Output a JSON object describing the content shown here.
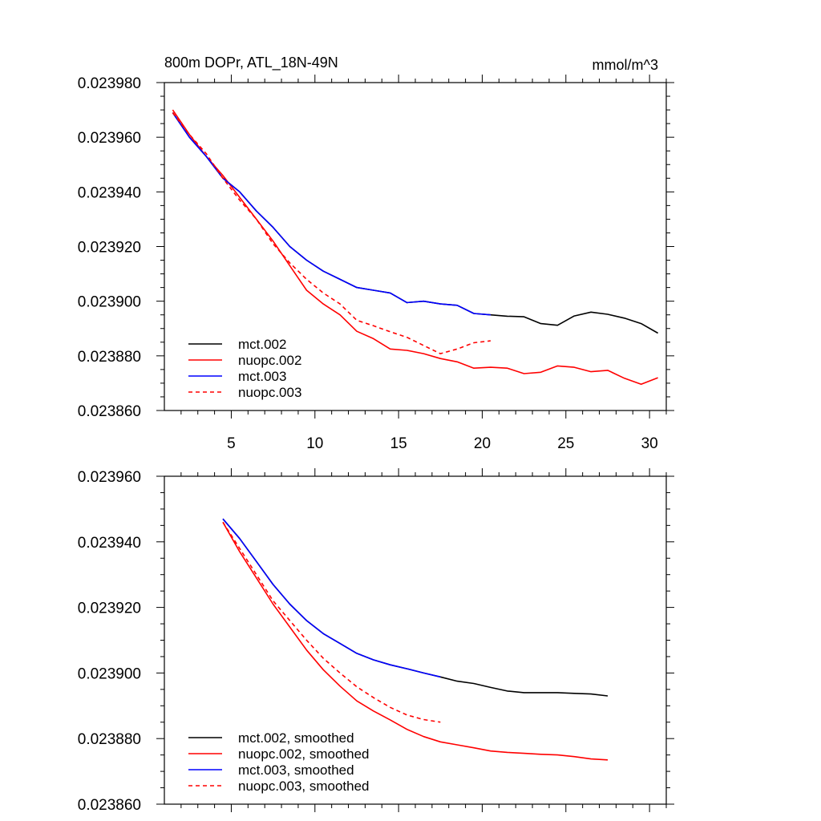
{
  "chart_data": [
    {
      "type": "line",
      "title": "800m DOPr, ATL_18N-49N",
      "units": "mmol/m^3",
      "xlim": [
        1,
        31
      ],
      "ylim": [
        0.02386,
        0.02398
      ],
      "xticks": [
        5,
        10,
        15,
        20,
        25,
        30
      ],
      "yticks": [
        "0.023980",
        "0.023960",
        "0.023940",
        "0.023920",
        "0.023900",
        "0.023880",
        "0.023860"
      ],
      "ytick_values": [
        0.02398,
        0.02396,
        0.02394,
        0.02392,
        0.0239,
        0.02388,
        0.02386
      ],
      "legend_position": "bottom-left",
      "series": [
        {
          "name": "mct.002",
          "color": "#000000",
          "dash": "solid",
          "x": [
            1.5,
            2.5,
            3.5,
            4.5,
            5.5,
            6.5,
            7.5,
            8.5,
            9.5,
            10.5,
            11.5,
            12.5,
            13.5,
            14.5,
            15.5,
            16.5,
            17.5,
            18.5,
            19.5,
            20.5,
            21.5,
            22.5,
            23.5,
            24.5,
            25.5,
            26.5,
            27.5,
            28.5,
            29.5,
            30.5
          ],
          "y": [
            0.023969,
            0.02396,
            0.023953,
            0.023945,
            0.02394,
            0.023933,
            0.023927,
            0.02392,
            0.023915,
            0.023911,
            0.023908,
            0.023905,
            0.023904,
            0.023903,
            0.0238995,
            0.0239,
            0.023899,
            0.0238985,
            0.0238955,
            0.023895,
            0.0238945,
            0.0238943,
            0.0238918,
            0.0238912,
            0.0238946,
            0.023896,
            0.0238952,
            0.0238938,
            0.0238918,
            0.0238883
          ]
        },
        {
          "name": "nuopc.002",
          "color": "#ff0000",
          "dash": "solid",
          "x": [
            1.5,
            2.5,
            3.5,
            4.5,
            5.5,
            6.5,
            7.5,
            8.5,
            9.5,
            10.5,
            11.5,
            12.5,
            13.5,
            14.5,
            15.5,
            16.5,
            17.5,
            18.5,
            19.5,
            20.5,
            21.5,
            22.5,
            23.5,
            24.5,
            25.5,
            26.5,
            27.5,
            28.5,
            29.5,
            30.5
          ],
          "y": [
            0.02397,
            0.023961,
            0.023953,
            0.023946,
            0.023938,
            0.02393,
            0.023922,
            0.023913,
            0.023904,
            0.023899,
            0.023895,
            0.023889,
            0.0238863,
            0.0238825,
            0.023882,
            0.0238808,
            0.023879,
            0.0238778,
            0.0238755,
            0.0238758,
            0.0238755,
            0.0238735,
            0.023874,
            0.0238763,
            0.0238758,
            0.0238742,
            0.0238747,
            0.0238718,
            0.0238696,
            0.023872
          ]
        },
        {
          "name": "mct.003",
          "color": "#0000ff",
          "dash": "solid",
          "x": [
            1.5,
            2.5,
            3.5,
            4.5,
            5.5,
            6.5,
            7.5,
            8.5,
            9.5,
            10.5,
            11.5,
            12.5,
            13.5,
            14.5,
            15.5,
            16.5,
            17.5,
            18.5,
            19.5,
            20.5
          ],
          "y": [
            0.023969,
            0.02396,
            0.023953,
            0.023945,
            0.02394,
            0.023933,
            0.023927,
            0.02392,
            0.023915,
            0.023911,
            0.023908,
            0.023905,
            0.023904,
            0.023903,
            0.0238995,
            0.0239,
            0.023899,
            0.0238985,
            0.0238955,
            0.023895
          ]
        },
        {
          "name": "nuopc.003",
          "color": "#ff0000",
          "dash": "dashed",
          "x": [
            1.5,
            2.5,
            3.5,
            4.5,
            5.5,
            6.5,
            7.5,
            8.5,
            9.5,
            10.5,
            11.5,
            12.5,
            13.5,
            14.5,
            15.5,
            16.5,
            17.5,
            18.5,
            19.5,
            20.5
          ],
          "y": [
            0.023969,
            0.023961,
            0.023954,
            0.023945,
            0.023937,
            0.02393,
            0.023921,
            0.023914,
            0.023908,
            0.023903,
            0.023899,
            0.023893,
            0.023891,
            0.0238888,
            0.0238868,
            0.0238838,
            0.0238808,
            0.0238825,
            0.0238848,
            0.0238855
          ]
        }
      ]
    },
    {
      "type": "line",
      "title": "",
      "xlim": [
        1,
        31
      ],
      "ylim": [
        0.02386,
        0.02396
      ],
      "xticks": [
        5,
        10,
        15,
        20,
        25,
        30
      ],
      "yticks": [
        "0.023960",
        "0.023940",
        "0.023920",
        "0.023900",
        "0.023880",
        "0.023860"
      ],
      "ytick_values": [
        0.02396,
        0.02394,
        0.02392,
        0.0239,
        0.02388,
        0.02386
      ],
      "legend_position": "bottom-left",
      "series": [
        {
          "name": "mct.002, smoothed",
          "color": "#000000",
          "dash": "solid",
          "x": [
            4.5,
            5.5,
            6.5,
            7.5,
            8.5,
            9.5,
            10.5,
            11.5,
            12.5,
            13.5,
            14.5,
            15.5,
            16.5,
            17.5,
            18.5,
            19.5,
            20.5,
            21.5,
            22.5,
            23.5,
            24.5,
            25.5,
            26.5,
            27.5
          ],
          "y": [
            0.023947,
            0.023941,
            0.023934,
            0.023927,
            0.023921,
            0.023916,
            0.023912,
            0.023909,
            0.023906,
            0.023904,
            0.0239025,
            0.0239013,
            0.0239,
            0.0238988,
            0.0238975,
            0.0238968,
            0.0238956,
            0.0238945,
            0.023894,
            0.023894,
            0.023894,
            0.0238938,
            0.0238936,
            0.023893
          ]
        },
        {
          "name": "nuopc.002, smoothed",
          "color": "#ff0000",
          "dash": "solid",
          "x": [
            4.5,
            5.5,
            6.5,
            7.5,
            8.5,
            9.5,
            10.5,
            11.5,
            12.5,
            13.5,
            14.5,
            15.5,
            16.5,
            17.5,
            18.5,
            19.5,
            20.5,
            21.5,
            22.5,
            23.5,
            24.5,
            25.5,
            26.5,
            27.5
          ],
          "y": [
            0.023946,
            0.023937,
            0.023929,
            0.023921,
            0.023914,
            0.023907,
            0.023901,
            0.023896,
            0.0238915,
            0.0238884,
            0.0238857,
            0.0238828,
            0.0238806,
            0.023879,
            0.0238781,
            0.0238772,
            0.0238762,
            0.0238758,
            0.0238755,
            0.0238752,
            0.023875,
            0.0238745,
            0.0238738,
            0.0238735
          ]
        },
        {
          "name": "mct.003, smoothed",
          "color": "#0000ff",
          "dash": "solid",
          "x": [
            4.5,
            5.5,
            6.5,
            7.5,
            8.5,
            9.5,
            10.5,
            11.5,
            12.5,
            13.5,
            14.5,
            15.5,
            16.5,
            17.5
          ],
          "y": [
            0.023947,
            0.023941,
            0.023934,
            0.023927,
            0.023921,
            0.023916,
            0.023912,
            0.023909,
            0.023906,
            0.023904,
            0.0239025,
            0.0239013,
            0.0239,
            0.0238988
          ]
        },
        {
          "name": "nuopc.003, smoothed",
          "color": "#ff0000",
          "dash": "dashed",
          "x": [
            4.5,
            5.5,
            6.5,
            7.5,
            8.5,
            9.5,
            10.5,
            11.5,
            12.5,
            13.5,
            14.5,
            15.5,
            16.5,
            17.5
          ],
          "y": [
            0.023946,
            0.023938,
            0.02393,
            0.023922,
            0.023916,
            0.02391,
            0.0239045,
            0.0239,
            0.0238958,
            0.0238925,
            0.0238895,
            0.0238872,
            0.0238858,
            0.023885
          ]
        }
      ]
    }
  ]
}
